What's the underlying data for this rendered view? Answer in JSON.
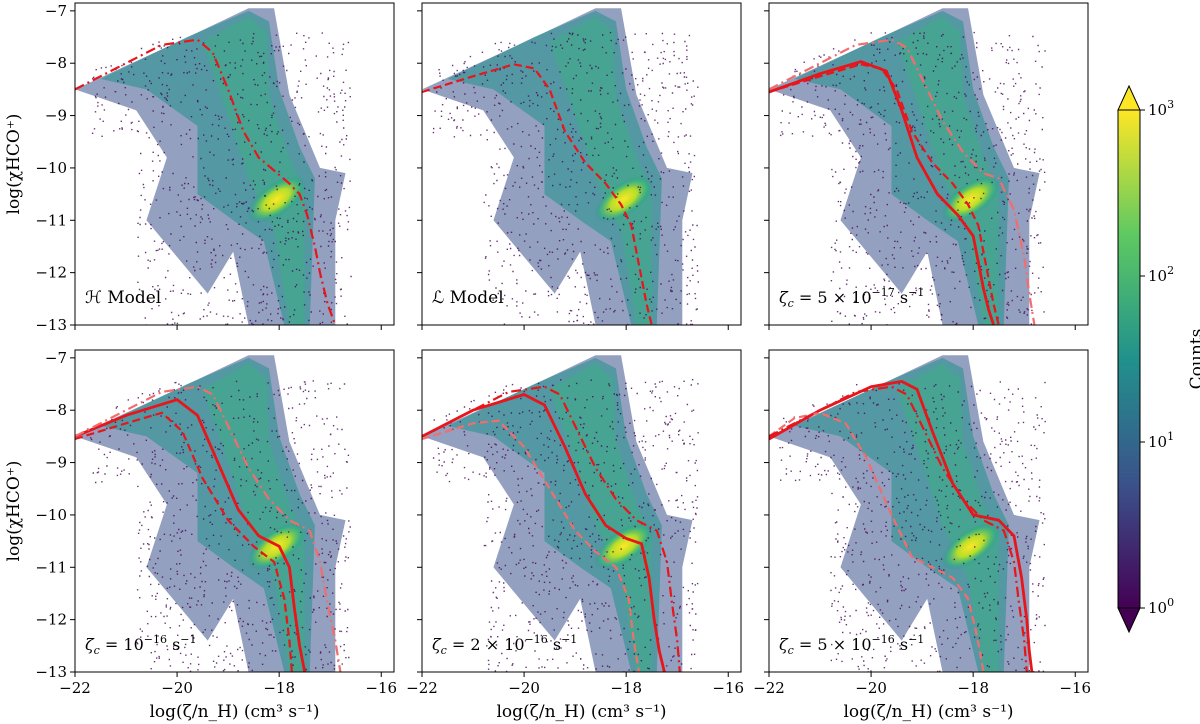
{
  "figure": {
    "colorbar": {
      "label": "Counts",
      "ticks": [
        {
          "base": "10",
          "exp": "3",
          "value": 1000
        },
        {
          "base": "10",
          "exp": "2",
          "value": 100
        },
        {
          "base": "10",
          "exp": "1",
          "value": 10
        },
        {
          "base": "10",
          "exp": "0",
          "value": 1
        }
      ],
      "colormap": [
        "#440154",
        "#3b528b",
        "#21918c",
        "#5ec962",
        "#fde725"
      ],
      "scale": "log",
      "range": [
        1,
        1000
      ]
    },
    "line_color": "#e8151b",
    "light_line_color": "#f26d6d"
  },
  "chart_data": [
    {
      "type": "heatmap",
      "panel_label": "ℋ Model",
      "ylabel": "log(χHCO⁺)",
      "xlabel": "",
      "xlim": [
        -22,
        -15.75
      ],
      "ylim": [
        -13,
        -6.85
      ],
      "xticks": [
        "−22",
        "−20",
        "−18",
        "−16"
      ],
      "xtick_values": [
        -22,
        -20,
        -18,
        -16
      ],
      "yticks": [
        "−7",
        "−8",
        "−9",
        "−10",
        "−11",
        "−12",
        "−13"
      ],
      "ytick_values": [
        -7,
        -8,
        -9,
        -10,
        -11,
        -12,
        -13
      ],
      "series": [
        {
          "style": "dashdot",
          "shade": "dark",
          "x": [
            -22,
            -21,
            -20.3,
            -19.6,
            -19.3,
            -19.0,
            -18.7,
            -18.4,
            -18.1,
            -17.8,
            -17.6,
            -17.45,
            -17.3,
            -17.2,
            -17.05,
            -16.9
          ],
          "y": [
            -8.5,
            -8.0,
            -7.65,
            -7.55,
            -7.8,
            -8.5,
            -9.3,
            -9.8,
            -10.05,
            -10.3,
            -10.5,
            -10.9,
            -11.5,
            -12.0,
            -12.6,
            -13.0
          ]
        }
      ]
    },
    {
      "type": "heatmap",
      "panel_label": "ℒ Model",
      "ylabel": "",
      "xlabel": "",
      "xlim": [
        -22,
        -15.75
      ],
      "ylim": [
        -13,
        -6.85
      ],
      "xticks": [
        "−22",
        "−20",
        "−18",
        "−16"
      ],
      "xtick_values": [
        -22,
        -20,
        -18,
        -16
      ],
      "yticks": [],
      "ytick_values": [],
      "series": [
        {
          "style": "dashed",
          "shade": "dark",
          "x": [
            -22,
            -21,
            -20.2,
            -19.8,
            -19.5,
            -19.2,
            -18.8,
            -18.4,
            -18.1,
            -17.9,
            -17.8,
            -17.7,
            -17.6,
            -17.5
          ],
          "y": [
            -8.55,
            -8.25,
            -8.02,
            -8.1,
            -8.5,
            -9.3,
            -9.9,
            -10.3,
            -10.7,
            -11.1,
            -11.6,
            -12.1,
            -12.6,
            -13.0
          ]
        }
      ]
    },
    {
      "type": "heatmap",
      "panel_label_prefix": "ζ",
      "panel_label_sub": "c",
      "panel_label": " = 5 × 10",
      "panel_label_exp": "−17",
      "panel_label_unit": " s",
      "panel_label_unit_exp": "−1",
      "ylabel": "",
      "xlabel": "",
      "xlim": [
        -22,
        -15.75
      ],
      "ylim": [
        -13,
        -6.85
      ],
      "xticks": [
        "−22",
        "−20",
        "−18",
        "−16"
      ],
      "xtick_values": [
        -22,
        -20,
        -18,
        -16
      ],
      "yticks": [],
      "ytick_values": [],
      "series": [
        {
          "style": "solid",
          "shade": "dark",
          "x": [
            -22,
            -21,
            -20.2,
            -19.7,
            -19.4,
            -19.1,
            -18.7,
            -18.3,
            -18.0,
            -17.9,
            -17.8,
            -17.7,
            -17.6
          ],
          "y": [
            -8.55,
            -8.2,
            -7.97,
            -8.15,
            -8.9,
            -9.8,
            -10.5,
            -10.9,
            -11.3,
            -11.8,
            -12.3,
            -12.7,
            -13.0
          ]
        },
        {
          "style": "dashed",
          "shade": "dark",
          "x": [
            -22,
            -21,
            -20.2,
            -19.8,
            -19.5,
            -19.2,
            -18.8,
            -18.4,
            -18.1,
            -17.9,
            -17.8,
            -17.7,
            -17.6,
            -17.5
          ],
          "y": [
            -8.55,
            -8.25,
            -8.02,
            -8.1,
            -8.5,
            -9.3,
            -9.9,
            -10.3,
            -10.7,
            -11.1,
            -11.6,
            -12.1,
            -12.6,
            -13.0
          ]
        },
        {
          "style": "dashdot",
          "shade": "light",
          "x": [
            -22,
            -21,
            -20.3,
            -19.6,
            -19.3,
            -19.0,
            -18.6,
            -18.2,
            -17.8,
            -17.5,
            -17.2,
            -17.0,
            -16.9,
            -16.8
          ],
          "y": [
            -8.5,
            -8.0,
            -7.65,
            -7.55,
            -7.7,
            -8.3,
            -9.1,
            -9.7,
            -10.1,
            -10.2,
            -10.8,
            -11.7,
            -12.4,
            -13.0
          ]
        }
      ]
    },
    {
      "type": "heatmap",
      "panel_label_prefix": "ζ",
      "panel_label_sub": "c",
      "panel_label": " = 10",
      "panel_label_exp": "−16",
      "panel_label_unit": " s",
      "panel_label_unit_exp": "−1",
      "ylabel": "log(χHCO⁺)",
      "xlabel": "log(ζ/n_H) (cm³ s⁻¹)",
      "xlim": [
        -22,
        -15.75
      ],
      "ylim": [
        -13,
        -6.85
      ],
      "xticks": [
        "−22",
        "−20",
        "−18",
        "−16"
      ],
      "xtick_values": [
        -22,
        -20,
        -18,
        -16
      ],
      "yticks": [
        "−7",
        "−8",
        "−9",
        "−10",
        "−11",
        "−12",
        "−13"
      ],
      "ytick_values": [
        -7,
        -8,
        -9,
        -10,
        -11,
        -12,
        -13
      ],
      "series": [
        {
          "style": "solid",
          "shade": "dark",
          "x": [
            -22,
            -21,
            -20.0,
            -19.6,
            -19.2,
            -18.8,
            -18.4,
            -18.0,
            -17.8,
            -17.7,
            -17.6,
            -17.5
          ],
          "y": [
            -8.5,
            -8.1,
            -7.8,
            -8.1,
            -9.0,
            -9.9,
            -10.4,
            -10.6,
            -11.0,
            -11.8,
            -12.5,
            -13.0
          ]
        },
        {
          "style": "dashed",
          "shade": "dark",
          "x": [
            -22,
            -21,
            -20.3,
            -19.9,
            -19.5,
            -19.0,
            -18.5,
            -18.1,
            -17.9,
            -17.8,
            -17.75
          ],
          "y": [
            -8.55,
            -8.25,
            -8.05,
            -8.4,
            -9.3,
            -10.1,
            -10.6,
            -10.9,
            -11.6,
            -12.4,
            -13.0
          ]
        },
        {
          "style": "dashdot",
          "shade": "light",
          "x": [
            -22,
            -21,
            -20.3,
            -19.6,
            -19.3,
            -19.0,
            -18.6,
            -18.2,
            -17.8,
            -17.4,
            -17.2,
            -17.05,
            -16.9,
            -16.8
          ],
          "y": [
            -8.5,
            -8.0,
            -7.65,
            -7.55,
            -7.7,
            -8.3,
            -9.1,
            -9.7,
            -10.1,
            -10.3,
            -10.9,
            -11.7,
            -12.4,
            -13.0
          ]
        }
      ]
    },
    {
      "type": "heatmap",
      "panel_label_prefix": "ζ",
      "panel_label_sub": "c",
      "panel_label": " = 2 × 10",
      "panel_label_exp": "−16",
      "panel_label_unit": " s",
      "panel_label_unit_exp": "−1",
      "ylabel": "",
      "xlabel": "log(ζ/n_H) (cm³ s⁻¹)",
      "xlim": [
        -22,
        -15.75
      ],
      "ylim": [
        -13,
        -6.85
      ],
      "xticks": [
        "−22",
        "−20",
        "−18",
        "−16"
      ],
      "xtick_values": [
        -22,
        -20,
        -18,
        -16
      ],
      "yticks": [],
      "ytick_values": [],
      "series": [
        {
          "style": "solid",
          "shade": "dark",
          "x": [
            -22,
            -21,
            -20.0,
            -19.6,
            -19.2,
            -18.8,
            -18.4,
            -18.0,
            -17.7,
            -17.55,
            -17.45,
            -17.35,
            -17.25
          ],
          "y": [
            -8.5,
            -8.0,
            -7.7,
            -7.9,
            -8.7,
            -9.6,
            -10.2,
            -10.45,
            -10.55,
            -11.2,
            -12.0,
            -12.6,
            -13.0
          ]
        },
        {
          "style": "dashed",
          "shade": "light",
          "x": [
            -22,
            -21,
            -20.5,
            -20.0,
            -19.5,
            -19.0,
            -18.6,
            -18.2,
            -17.95,
            -17.85,
            -17.75
          ],
          "y": [
            -8.55,
            -8.25,
            -8.2,
            -8.7,
            -9.5,
            -10.3,
            -10.7,
            -11.0,
            -11.6,
            -12.4,
            -13.0
          ]
        },
        {
          "style": "dashdot",
          "shade": "dark",
          "x": [
            -22,
            -21,
            -20.3,
            -19.6,
            -19.3,
            -19.0,
            -18.6,
            -18.2,
            -17.8,
            -17.4,
            -17.2,
            -17.1,
            -17.0,
            -16.95
          ],
          "y": [
            -8.5,
            -8.0,
            -7.65,
            -7.55,
            -7.7,
            -8.3,
            -9.1,
            -9.7,
            -10.1,
            -10.3,
            -10.9,
            -11.7,
            -12.4,
            -13.0
          ]
        }
      ]
    },
    {
      "type": "heatmap",
      "panel_label_prefix": "ζ",
      "panel_label_sub": "c",
      "panel_label": " = 5 × 10",
      "panel_label_exp": "−16",
      "panel_label_unit": " s",
      "panel_label_unit_exp": "−1",
      "ylabel": "",
      "xlabel": "log(ζ/n_H) (cm³ s⁻¹)",
      "xlim": [
        -22,
        -15.75
      ],
      "ylim": [
        -13,
        -6.85
      ],
      "xticks": [
        "−22",
        "−20",
        "−18",
        "−16"
      ],
      "xtick_values": [
        -22,
        -20,
        -18,
        -16
      ],
      "yticks": [],
      "ytick_values": [],
      "series": [
        {
          "style": "solid",
          "shade": "dark",
          "x": [
            -22,
            -21,
            -20.0,
            -19.4,
            -19.1,
            -18.8,
            -18.4,
            -18.0,
            -17.5,
            -17.2,
            -17.05,
            -16.95,
            -16.9,
            -16.85
          ],
          "y": [
            -8.55,
            -8.0,
            -7.55,
            -7.45,
            -7.6,
            -8.4,
            -9.4,
            -10.0,
            -10.1,
            -10.4,
            -11.2,
            -12.0,
            -12.6,
            -13.0
          ]
        },
        {
          "style": "dashed",
          "shade": "light",
          "x": [
            -22,
            -21.5,
            -21.0,
            -20.5,
            -20.1,
            -19.6,
            -19.2,
            -18.8,
            -18.4,
            -18.1,
            -17.95,
            -17.85,
            -17.8
          ],
          "y": [
            -8.5,
            -8.15,
            -8.05,
            -8.25,
            -8.9,
            -10.0,
            -10.8,
            -11.0,
            -11.2,
            -11.6,
            -12.2,
            -12.7,
            -13.0
          ]
        },
        {
          "style": "dashdot",
          "shade": "dark",
          "x": [
            -22,
            -21,
            -20.3,
            -19.6,
            -19.3,
            -19.0,
            -18.6,
            -18.2,
            -17.8,
            -17.4,
            -17.2,
            -17.1,
            -17.0,
            -16.95
          ],
          "y": [
            -8.5,
            -8.0,
            -7.65,
            -7.55,
            -7.7,
            -8.3,
            -9.1,
            -9.7,
            -10.1,
            -10.3,
            -10.9,
            -11.7,
            -12.4,
            -13.0
          ]
        }
      ]
    }
  ]
}
